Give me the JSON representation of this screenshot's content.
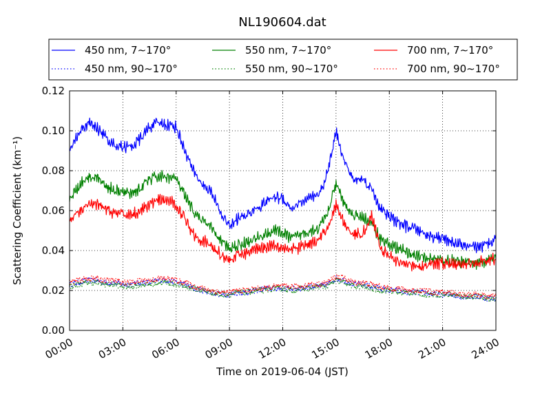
{
  "chart_data": {
    "type": "line",
    "title": "NL190604.dat",
    "xlabel": "Time on 2019-06-04 (JST)",
    "ylabel": "Scattering Coefficient (km⁻¹)",
    "xlim": [
      "00:00",
      "24:00"
    ],
    "ylim": [
      0,
      0.12
    ],
    "x_ticks": [
      "00:00",
      "03:00",
      "06:00",
      "09:00",
      "12:00",
      "15:00",
      "18:00",
      "21:00",
      "24:00"
    ],
    "y_ticks": [
      "0.00",
      "0.02",
      "0.04",
      "0.06",
      "0.08",
      "0.10",
      "0.12"
    ],
    "grid": true,
    "legend_position": "top",
    "x_hours": [
      0,
      0.5,
      1,
      1.5,
      2,
      2.5,
      3,
      3.5,
      4,
      4.5,
      5,
      5.5,
      6,
      6.5,
      7,
      7.5,
      8,
      8.5,
      9,
      9.5,
      10,
      10.5,
      11,
      11.5,
      12,
      12.5,
      13,
      13.5,
      14,
      14.5,
      15,
      15.5,
      16,
      16.5,
      17,
      17.5,
      18,
      18.5,
      19,
      19.5,
      20,
      20.5,
      21,
      21.5,
      22,
      22.5,
      23,
      23.5,
      24
    ],
    "series": [
      {
        "name": "450 nm, 7∼170°",
        "color": "#0000ff",
        "style": "solid",
        "values": [
          0.09,
          0.098,
          0.104,
          0.102,
          0.097,
          0.093,
          0.092,
          0.092,
          0.096,
          0.102,
          0.104,
          0.103,
          0.102,
          0.09,
          0.079,
          0.073,
          0.069,
          0.059,
          0.052,
          0.056,
          0.058,
          0.061,
          0.064,
          0.067,
          0.066,
          0.061,
          0.064,
          0.066,
          0.067,
          0.078,
          0.1,
          0.084,
          0.075,
          0.076,
          0.071,
          0.061,
          0.057,
          0.054,
          0.052,
          0.051,
          0.048,
          0.047,
          0.046,
          0.044,
          0.043,
          0.041,
          0.042,
          0.043,
          0.047
        ]
      },
      {
        "name": "550 nm, 7∼170°",
        "color": "#008000",
        "style": "solid",
        "values": [
          0.066,
          0.072,
          0.077,
          0.077,
          0.073,
          0.07,
          0.069,
          0.069,
          0.071,
          0.076,
          0.077,
          0.077,
          0.076,
          0.067,
          0.059,
          0.055,
          0.051,
          0.045,
          0.041,
          0.043,
          0.044,
          0.046,
          0.048,
          0.05,
          0.049,
          0.046,
          0.048,
          0.05,
          0.051,
          0.058,
          0.073,
          0.063,
          0.057,
          0.057,
          0.053,
          0.046,
          0.043,
          0.041,
          0.039,
          0.038,
          0.036,
          0.036,
          0.035,
          0.035,
          0.034,
          0.034,
          0.034,
          0.035,
          0.036
        ]
      },
      {
        "name": "700 nm, 7∼170°",
        "color": "#ff0000",
        "style": "solid",
        "values": [
          0.055,
          0.059,
          0.063,
          0.063,
          0.061,
          0.059,
          0.058,
          0.058,
          0.06,
          0.063,
          0.065,
          0.065,
          0.063,
          0.056,
          0.048,
          0.045,
          0.042,
          0.038,
          0.035,
          0.038,
          0.039,
          0.041,
          0.042,
          0.043,
          0.042,
          0.04,
          0.042,
          0.043,
          0.045,
          0.051,
          0.063,
          0.053,
          0.048,
          0.048,
          0.058,
          0.041,
          0.037,
          0.034,
          0.033,
          0.033,
          0.032,
          0.033,
          0.034,
          0.033,
          0.032,
          0.034,
          0.034,
          0.035,
          0.036
        ]
      },
      {
        "name": "450 nm, 90∼170°",
        "color": "#0000ff",
        "style": "dotted",
        "values": [
          0.023,
          0.024,
          0.025,
          0.025,
          0.024,
          0.024,
          0.023,
          0.023,
          0.024,
          0.024,
          0.025,
          0.025,
          0.024,
          0.023,
          0.021,
          0.02,
          0.019,
          0.018,
          0.018,
          0.019,
          0.019,
          0.02,
          0.021,
          0.021,
          0.021,
          0.021,
          0.021,
          0.022,
          0.022,
          0.023,
          0.026,
          0.025,
          0.023,
          0.023,
          0.022,
          0.021,
          0.02,
          0.02,
          0.019,
          0.019,
          0.019,
          0.018,
          0.018,
          0.018,
          0.017,
          0.017,
          0.017,
          0.016,
          0.016
        ]
      },
      {
        "name": "550 nm, 90∼170°",
        "color": "#008000",
        "style": "dotted",
        "values": [
          0.022,
          0.023,
          0.024,
          0.024,
          0.023,
          0.023,
          0.022,
          0.022,
          0.023,
          0.023,
          0.024,
          0.024,
          0.023,
          0.022,
          0.021,
          0.02,
          0.019,
          0.018,
          0.018,
          0.019,
          0.019,
          0.02,
          0.02,
          0.021,
          0.021,
          0.02,
          0.021,
          0.021,
          0.022,
          0.022,
          0.025,
          0.024,
          0.022,
          0.022,
          0.021,
          0.02,
          0.02,
          0.019,
          0.019,
          0.019,
          0.018,
          0.018,
          0.018,
          0.018,
          0.017,
          0.017,
          0.017,
          0.016,
          0.016
        ]
      },
      {
        "name": "700 nm, 90∼170°",
        "color": "#ff0000",
        "style": "dotted",
        "values": [
          0.024,
          0.025,
          0.026,
          0.026,
          0.025,
          0.025,
          0.024,
          0.024,
          0.025,
          0.025,
          0.026,
          0.026,
          0.025,
          0.024,
          0.022,
          0.021,
          0.02,
          0.019,
          0.019,
          0.02,
          0.02,
          0.021,
          0.021,
          0.022,
          0.022,
          0.022,
          0.022,
          0.023,
          0.023,
          0.024,
          0.027,
          0.026,
          0.024,
          0.024,
          0.023,
          0.022,
          0.021,
          0.021,
          0.02,
          0.02,
          0.02,
          0.019,
          0.019,
          0.019,
          0.018,
          0.018,
          0.018,
          0.017,
          0.017
        ]
      }
    ]
  }
}
